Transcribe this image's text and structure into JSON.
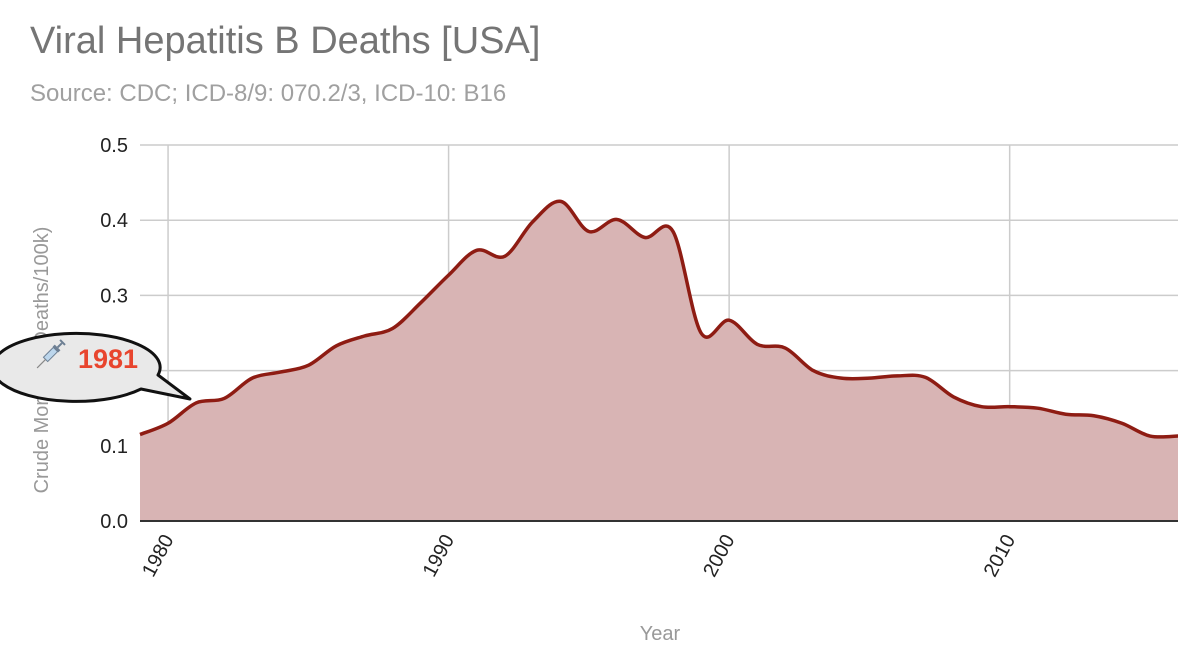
{
  "title": "Viral Hepatitis B Deaths [USA]",
  "subtitle": "Source: CDC; ICD-8/9: 070.2/3, ICD-10: B16",
  "colors": {
    "line": "#8e1c13",
    "fill": "#d8b4b4",
    "grid": "#cccccc",
    "callout_text": "#e8452e",
    "callout_fill": "#e9e9e9"
  },
  "callout": {
    "icon": "syringe-icon",
    "text": "1981"
  },
  "chart_data": {
    "type": "area",
    "title": "Viral Hepatitis B Deaths [USA]",
    "subtitle": "Source: CDC; ICD-8/9: 070.2/3, ICD-10: B16",
    "xlabel": "Year",
    "ylabel": "Crude Mortality (Deaths/100k)",
    "xlim": [
      1979,
      2016
    ],
    "ylim": [
      0,
      0.5
    ],
    "x_ticks": [
      "1980",
      "1990",
      "2000",
      "2010"
    ],
    "y_ticks": [
      "0.0",
      "0.1",
      "0.2",
      "0.3",
      "0.4",
      "0.5"
    ],
    "grid": true,
    "legend": "none",
    "x": [
      1979,
      1980,
      1981,
      1982,
      1983,
      1984,
      1985,
      1986,
      1987,
      1988,
      1989,
      1990,
      1991,
      1992,
      1993,
      1994,
      1995,
      1996,
      1997,
      1998,
      1999,
      2000,
      2001,
      2002,
      2003,
      2004,
      2005,
      2006,
      2007,
      2008,
      2009,
      2010,
      2011,
      2012,
      2013,
      2014,
      2015,
      2016
    ],
    "series": [
      {
        "values": [
          0.115,
          0.13,
          0.157,
          0.163,
          0.19,
          0.198,
          0.207,
          0.233,
          0.246,
          0.256,
          0.29,
          0.327,
          0.36,
          0.352,
          0.398,
          0.425,
          0.385,
          0.401,
          0.377,
          0.385,
          0.25,
          0.267,
          0.235,
          0.23,
          0.2,
          0.19,
          0.19,
          0.193,
          0.191,
          0.165,
          0.152,
          0.152,
          0.15,
          0.142,
          0.14,
          0.13,
          0.113,
          0.113
        ]
      }
    ]
  }
}
